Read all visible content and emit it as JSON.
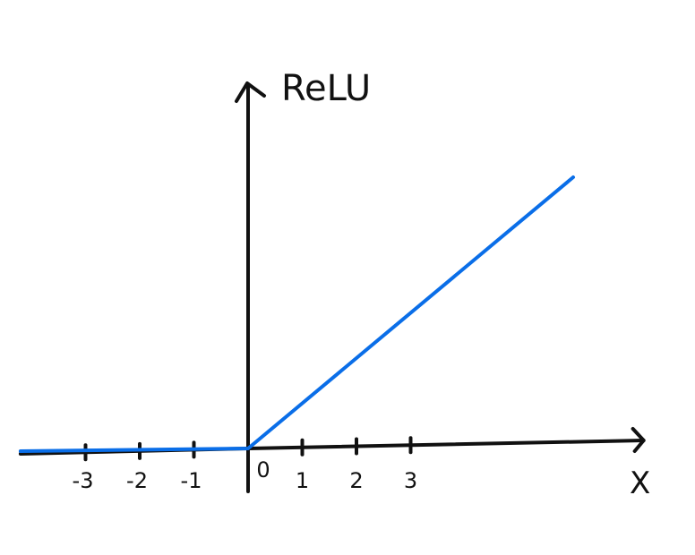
{
  "chart_data": {
    "type": "line",
    "title": "",
    "xlabel": "X",
    "ylabel": "ReLU",
    "x_ticks": [
      {
        "value": -3,
        "label": "-3"
      },
      {
        "value": -2,
        "label": "-2"
      },
      {
        "value": -1,
        "label": "-1"
      },
      {
        "value": 0,
        "label": "0"
      },
      {
        "value": 1,
        "label": "1"
      },
      {
        "value": 2,
        "label": "2"
      },
      {
        "value": 3,
        "label": "3"
      }
    ],
    "xlim": [
      -4.2,
      7.3
    ],
    "ylim": [
      0,
      6.8
    ],
    "grid": false,
    "series": [
      {
        "x": [
          -4.2,
          0,
          6
        ],
        "y": [
          -0.05,
          0,
          5.05
        ],
        "color": "#0a6ee8"
      }
    ],
    "axis_color": "#111111"
  }
}
